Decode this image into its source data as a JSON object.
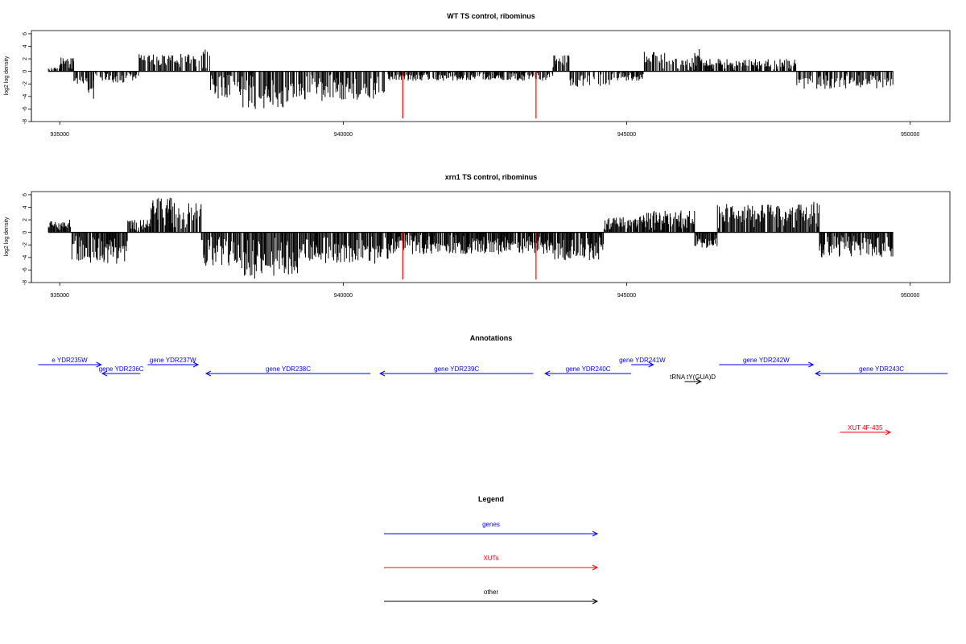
{
  "colors": {
    "gene": "#0000ff",
    "xut": "#ff0000",
    "other": "#000000",
    "signal": "#000000",
    "marker": "#ff0000"
  },
  "chart_data": [
    {
      "type": "bar",
      "title": "WT TS control, ribominus",
      "xlabel": "",
      "ylabel": "log2 log density",
      "xlim": [
        934500,
        950700
      ],
      "ylim": [
        -8,
        6.5
      ],
      "yticks": [
        6,
        4,
        2,
        0,
        -2,
        -4,
        -6,
        -8
      ],
      "xticks": [
        935000,
        940000,
        945000,
        950000
      ],
      "xtick_labels": [
        "935000",
        "940000",
        "945000",
        "950000"
      ],
      "markers_x": [
        941050,
        943400
      ],
      "markers_y": -7.5,
      "coverage_start": 934800,
      "coverage_end": 949700,
      "regions": [
        {
          "start": 934800,
          "end": 935000,
          "amp": 0.6
        },
        {
          "start": 935000,
          "end": 935250,
          "amp": 2.3
        },
        {
          "start": 935250,
          "end": 935500,
          "amp": -2.0
        },
        {
          "start": 935500,
          "end": 935600,
          "amp": -4.5
        },
        {
          "start": 935600,
          "end": 936400,
          "amp": -1.8
        },
        {
          "start": 936400,
          "end": 937500,
          "amp": 2.8
        },
        {
          "start": 937500,
          "end": 937650,
          "amp": 3.6
        },
        {
          "start": 937650,
          "end": 938200,
          "amp": -4.5
        },
        {
          "start": 938200,
          "end": 939100,
          "amp": -6.0
        },
        {
          "start": 939100,
          "end": 940000,
          "amp": -4.8
        },
        {
          "start": 940000,
          "end": 940800,
          "amp": -4.5
        },
        {
          "start": 940800,
          "end": 943700,
          "amp": -1.5
        },
        {
          "start": 943700,
          "end": 944000,
          "amp": 2.6
        },
        {
          "start": 944000,
          "end": 944800,
          "amp": -2.5
        },
        {
          "start": 944800,
          "end": 945300,
          "amp": -1.5
        },
        {
          "start": 945300,
          "end": 945700,
          "amp": 3.2
        },
        {
          "start": 945700,
          "end": 946200,
          "amp": 2.2
        },
        {
          "start": 946200,
          "end": 946300,
          "amp": 3.6
        },
        {
          "start": 946300,
          "end": 948000,
          "amp": 2.0
        },
        {
          "start": 948000,
          "end": 949700,
          "amp": -2.8
        }
      ]
    },
    {
      "type": "bar",
      "title": "xrn1 TS control, ribominus",
      "xlabel": "",
      "ylabel": "log2 log density",
      "xlim": [
        934500,
        950700
      ],
      "ylim": [
        -8,
        6.5
      ],
      "yticks": [
        6,
        4,
        2,
        0,
        -2,
        -4,
        -6,
        -8
      ],
      "xticks": [
        935000,
        940000,
        945000,
        950000
      ],
      "xtick_labels": [
        "935000",
        "940000",
        "945000",
        "950000"
      ],
      "markers_x": [
        941050,
        943400
      ],
      "markers_y": -7.5,
      "coverage_start": 934800,
      "coverage_end": 949700,
      "regions": [
        {
          "start": 934800,
          "end": 935200,
          "amp": 2.0
        },
        {
          "start": 935200,
          "end": 936200,
          "amp": -5.0
        },
        {
          "start": 936200,
          "end": 936600,
          "amp": 2.0
        },
        {
          "start": 936600,
          "end": 937000,
          "amp": 5.8
        },
        {
          "start": 937000,
          "end": 937500,
          "amp": 5.0
        },
        {
          "start": 937500,
          "end": 938200,
          "amp": -5.5
        },
        {
          "start": 938200,
          "end": 939200,
          "amp": -7.5
        },
        {
          "start": 939200,
          "end": 940800,
          "amp": -5.0
        },
        {
          "start": 940800,
          "end": 943700,
          "amp": -3.5
        },
        {
          "start": 943700,
          "end": 944600,
          "amp": -4.5
        },
        {
          "start": 944600,
          "end": 945200,
          "amp": 2.5
        },
        {
          "start": 945200,
          "end": 946200,
          "amp": 3.5
        },
        {
          "start": 946200,
          "end": 946600,
          "amp": -2.5
        },
        {
          "start": 946600,
          "end": 948300,
          "amp": 4.5
        },
        {
          "start": 948300,
          "end": 948400,
          "amp": 6.2
        },
        {
          "start": 948400,
          "end": 949700,
          "amp": -4.0
        }
      ]
    }
  ],
  "annotations": {
    "title": "Annotations",
    "features": [
      {
        "label": "e YDR235W",
        "start": 934620,
        "end": 935730,
        "row": 0,
        "dir": "+",
        "kind": "gene"
      },
      {
        "label": "gene YDR236C",
        "start": 935750,
        "end": 936420,
        "row": 1,
        "dir": "-",
        "kind": "gene"
      },
      {
        "label": "gene YDR237W",
        "start": 936550,
        "end": 937440,
        "row": 0,
        "dir": "+",
        "kind": "gene"
      },
      {
        "label": "gene YDR238C",
        "start": 937580,
        "end": 940480,
        "row": 1,
        "dir": "-",
        "kind": "gene"
      },
      {
        "label": "gene YDR239C",
        "start": 940650,
        "end": 943350,
        "row": 1,
        "dir": "-",
        "kind": "gene"
      },
      {
        "label": "gene YDR240C",
        "start": 943560,
        "end": 945080,
        "row": 1,
        "dir": "-",
        "kind": "gene"
      },
      {
        "label": "gene YDR241W",
        "start": 945080,
        "end": 945470,
        "row": 0,
        "dir": "+",
        "kind": "gene"
      },
      {
        "label": "tRNA tY(GUA)D",
        "start": 946020,
        "end": 946310,
        "row": 2,
        "dir": "+",
        "kind": "other"
      },
      {
        "label": "gene YDR242W",
        "start": 946630,
        "end": 948290,
        "row": 0,
        "dir": "+",
        "kind": "gene"
      },
      {
        "label": "gene YDR243C",
        "start": 948330,
        "end": 950660,
        "row": 1,
        "dir": "-",
        "kind": "gene"
      },
      {
        "label": "XUT 4F-435",
        "start": 948760,
        "end": 949650,
        "row": 3,
        "dir": "+",
        "kind": "xut"
      }
    ]
  },
  "legend": {
    "title": "Legend",
    "items": [
      {
        "label": "genes",
        "kind": "gene"
      },
      {
        "label": "XUTs",
        "kind": "xut"
      },
      {
        "label": "other",
        "kind": "other"
      }
    ]
  }
}
